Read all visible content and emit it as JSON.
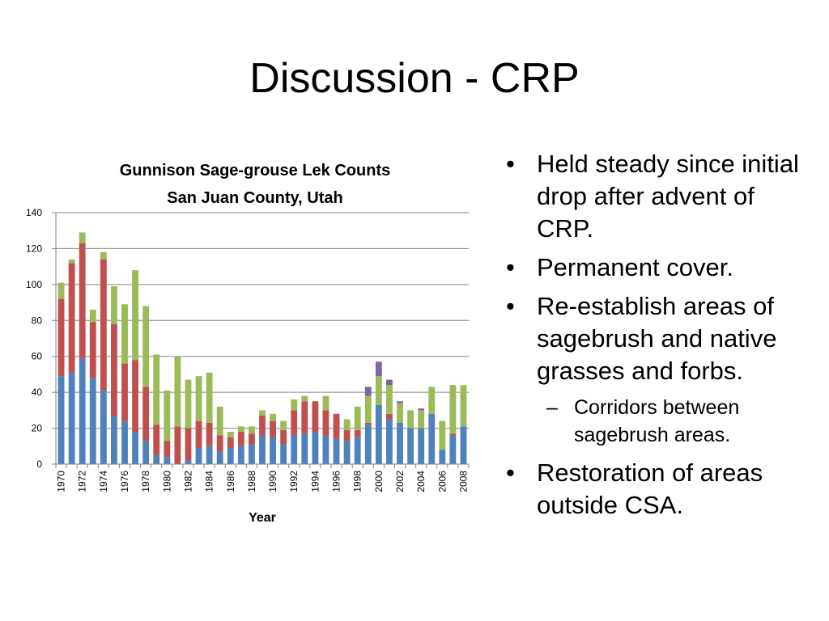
{
  "slide": {
    "title": "Discussion - CRP",
    "bullets": [
      {
        "text": "Held steady since initial drop after advent of CRP.",
        "sub": []
      },
      {
        "text": "Permanent cover.",
        "sub": []
      },
      {
        "text": "Re-establish areas of sagebrush and native grasses and forbs.",
        "sub": [
          "Corridors between sagebrush areas."
        ]
      },
      {
        "text": "Restoration of areas outside CSA.",
        "sub": []
      }
    ],
    "bullet_glyph": "•",
    "sub_bullet_glyph": "–"
  },
  "chart_data": {
    "type": "bar",
    "stacked": true,
    "title": "Gunnison Sage-grouse Lek Counts",
    "subtitle": "San Juan County, Utah",
    "xlabel": "Year",
    "ylabel": "",
    "ylim": [
      0,
      140
    ],
    "yticks": [
      0,
      20,
      40,
      60,
      80,
      100,
      120,
      140
    ],
    "grid": true,
    "legend": "none",
    "categories": [
      "1970",
      "1971",
      "1972",
      "1973",
      "1974",
      "1975",
      "1976",
      "1977",
      "1978",
      "1979",
      "1980",
      "1981",
      "1982",
      "1983",
      "1984",
      "1985",
      "1986",
      "1987",
      "1988",
      "1989",
      "1990",
      "1991",
      "1992",
      "1993",
      "1994",
      "1995",
      "1996",
      "1997",
      "1998",
      "1999",
      "2000",
      "2001",
      "2002",
      "2003",
      "2004",
      "2005",
      "2006",
      "2007",
      "2008"
    ],
    "xtick_labels": [
      "1970",
      "1972",
      "1974",
      "1976",
      "1978",
      "1980",
      "1982",
      "1984",
      "1986",
      "1988",
      "1990",
      "1992",
      "1994",
      "1996",
      "1998",
      "2000",
      "2002",
      "2004",
      "2006",
      "2008"
    ],
    "series": [
      {
        "color": "#4f81bd",
        "values": [
          49,
          51,
          59,
          48,
          41,
          27,
          24,
          18,
          13,
          5,
          4,
          0,
          2,
          9,
          10,
          7,
          9,
          10,
          11,
          16,
          15,
          11,
          16,
          17,
          18,
          16,
          14,
          13,
          15,
          22,
          33,
          25,
          23,
          20,
          20,
          28,
          8,
          16,
          21
        ]
      },
      {
        "color": "#c0504d",
        "values": [
          43,
          61,
          64,
          31,
          73,
          51,
          32,
          40,
          30,
          17,
          9,
          21,
          18,
          15,
          13,
          9,
          6,
          8,
          6,
          11,
          9,
          8,
          14,
          18,
          17,
          14,
          14,
          6,
          4,
          1,
          0,
          3,
          0,
          0,
          0,
          0,
          0,
          1,
          0
        ]
      },
      {
        "color": "#9bbb59",
        "values": [
          9,
          2,
          6,
          7,
          4,
          21,
          33,
          50,
          45,
          39,
          28,
          39,
          27,
          25,
          28,
          16,
          3,
          3,
          4,
          3,
          4,
          5,
          6,
          3,
          0,
          8,
          0,
          6,
          13,
          15,
          16,
          16,
          11,
          10,
          10,
          15,
          16,
          27,
          23
        ]
      },
      {
        "color": "#8064a2",
        "values": [
          0,
          0,
          0,
          0,
          0,
          0,
          0,
          0,
          0,
          0,
          0,
          0,
          0,
          0,
          0,
          0,
          0,
          0,
          0,
          0,
          0,
          0,
          0,
          0,
          0,
          0,
          0,
          0,
          0,
          5,
          8,
          3,
          1,
          0,
          1,
          0,
          0,
          0,
          0
        ]
      }
    ]
  }
}
